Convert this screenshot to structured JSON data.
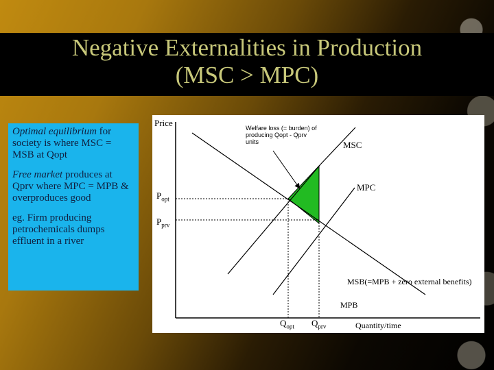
{
  "slide": {
    "title_line1": "Negative Externalities in Production",
    "title_line2": "(MSC > MPC)"
  },
  "text_panel": {
    "p1_em": "Optimal equilibrium",
    "p1_rest": " for society is where MSC = MSB at Qopt",
    "p2_em": "Free market",
    "p2_rest": " produces at Qprv where MPC = MPB & overproduces good",
    "p3": "eg. Firm producing petrochemicals dumps effluent in a river"
  },
  "diagram": {
    "y_axis_label": "Price",
    "x_axis_label": "Quantity/time",
    "price_opt": {
      "main": "P",
      "sub": "opt"
    },
    "price_prv": {
      "main": "P",
      "sub": "prv"
    },
    "qty_opt": {
      "main": "Q",
      "sub": "opt"
    },
    "qty_prv": {
      "main": "Q",
      "sub": "prv"
    },
    "curve_msc": "MSC",
    "curve_mpc": "MPC",
    "curve_msb": "MSB(=MPB + zero external benefits)",
    "curve_mpb": "MPB",
    "welfare_note": "Welfare loss (= burden) of producing Qopt - Qprv units",
    "colors": {
      "welfare_triangle": "#22bb22",
      "panel_bg": "#1ab4ec",
      "title_text": "#c8c87a"
    }
  }
}
